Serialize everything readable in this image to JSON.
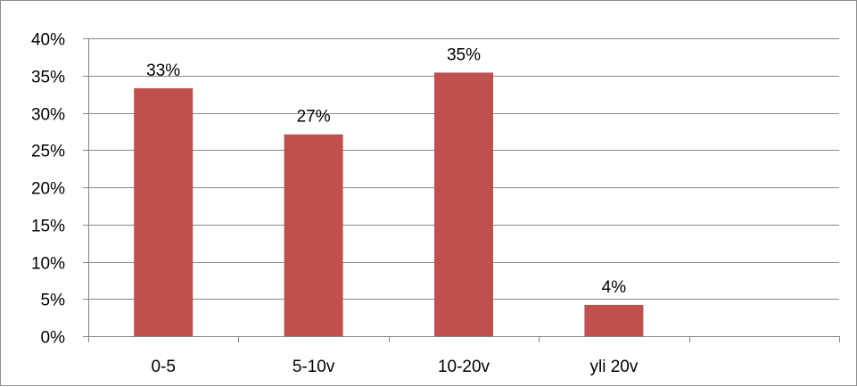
{
  "chart_data": {
    "type": "bar",
    "categories": [
      "0-5",
      "5-10v",
      "10-20v",
      "yli 20v",
      ""
    ],
    "values": [
      33.3,
      27.1,
      35.4,
      4.2,
      null
    ],
    "data_labels": [
      "33%",
      "27%",
      "35%",
      "4%",
      ""
    ],
    "y_ticks": [
      0,
      5,
      10,
      15,
      20,
      25,
      30,
      35,
      40
    ],
    "y_tick_labels": [
      "0%",
      "5%",
      "10%",
      "15%",
      "20%",
      "25%",
      "30%",
      "35%",
      "40%"
    ],
    "ylim": [
      0,
      40
    ],
    "grid": true,
    "legend": "none",
    "colors": {
      "bar": "#c0504d",
      "grid": "#868686",
      "axis": "#868686",
      "frame": "#8c8c8c"
    }
  }
}
